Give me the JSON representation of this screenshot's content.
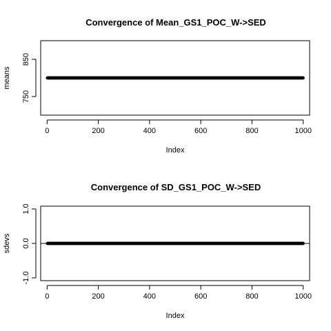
{
  "chart_data": [
    {
      "type": "scatter",
      "title": "Convergence of Mean_GS1_POC_W->SED",
      "xlabel": "Index",
      "ylabel": "means",
      "xlim": [
        -25,
        1025
      ],
      "ylim": [
        700,
        900
      ],
      "x_ticks": [
        0,
        200,
        400,
        600,
        800,
        1000
      ],
      "y_ticks": [
        750,
        850
      ],
      "series": [
        {
          "x_range": [
            1,
            1000
          ],
          "constant_y": 800,
          "color": "#000000"
        }
      ],
      "reference_line": null,
      "grid": false,
      "legend": "none"
    },
    {
      "type": "scatter",
      "title": "Convergence of SD_GS1_POC_W->SED",
      "xlabel": "Index",
      "ylabel": "sdevs",
      "xlim": [
        -25,
        1025
      ],
      "ylim": [
        -1.08,
        1.08
      ],
      "x_ticks": [
        0,
        200,
        400,
        600,
        800,
        1000
      ],
      "y_ticks": [
        -1.0,
        0.0,
        1.0
      ],
      "y_tick_labels": [
        "-1.0",
        "0.0",
        "1.0"
      ],
      "series": [
        {
          "x_range": [
            1,
            1000
          ],
          "constant_y": 0,
          "color": "#000000"
        }
      ],
      "reference_line": {
        "orientation": "horizontal",
        "y": 0
      },
      "grid": false,
      "legend": "none"
    }
  ]
}
